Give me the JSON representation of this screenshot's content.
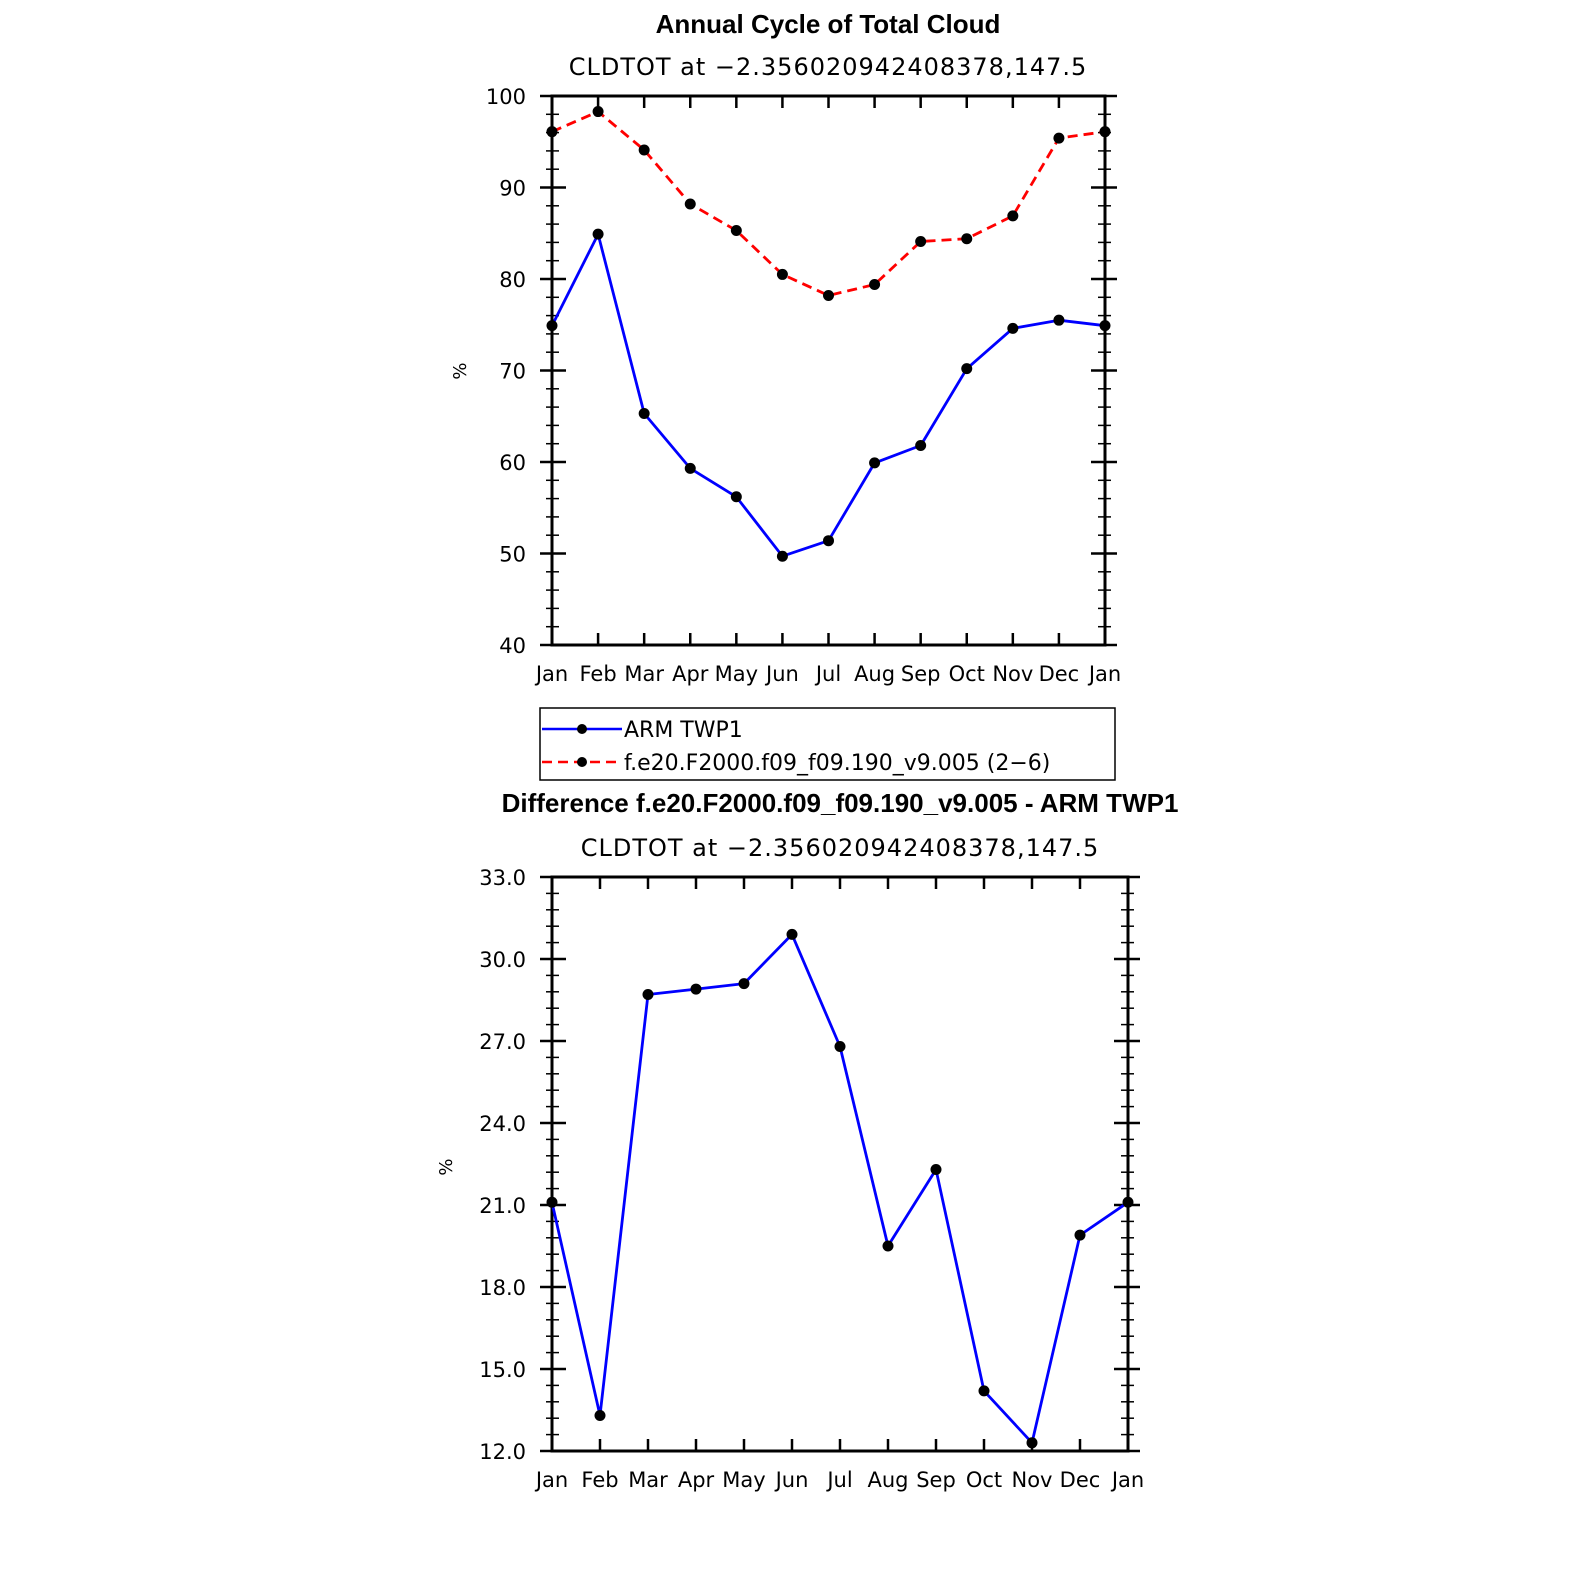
{
  "chart_data": [
    {
      "type": "line",
      "title": "Annual Cycle of Total Cloud",
      "subtitle": "CLDTOT at −2.356020942408378,147.5",
      "xlabel": "",
      "ylabel": "%",
      "categories": [
        "Jan",
        "Feb",
        "Mar",
        "Apr",
        "May",
        "Jun",
        "Jul",
        "Aug",
        "Sep",
        "Oct",
        "Nov",
        "Dec",
        "Jan"
      ],
      "yticks": [
        "40",
        "50",
        "60",
        "70",
        "80",
        "90",
        "100"
      ],
      "ylim": [
        40,
        100
      ],
      "series": [
        {
          "name": "ARM TWP1",
          "color": "#0000ff",
          "style": "solid",
          "values": [
            74.9,
            84.9,
            65.3,
            59.3,
            56.2,
            49.7,
            51.4,
            59.9,
            61.8,
            70.2,
            74.6,
            75.5,
            74.9
          ]
        },
        {
          "name": "f.e20.F2000.f09_f09.190_v9.005 (2−6)",
          "color": "#ff0000",
          "style": "dashed",
          "values": [
            96.1,
            98.3,
            94.1,
            88.2,
            85.3,
            80.5,
            78.2,
            79.4,
            84.1,
            84.4,
            86.9,
            95.4,
            96.1
          ]
        }
      ],
      "legend": "below"
    },
    {
      "type": "line",
      "title": "Difference f.e20.F2000.f09_f09.190_v9.005 - ARM TWP1",
      "subtitle": "CLDTOT at −2.356020942408378,147.5",
      "xlabel": "",
      "ylabel": "%",
      "categories": [
        "Jan",
        "Feb",
        "Mar",
        "Apr",
        "May",
        "Jun",
        "Jul",
        "Aug",
        "Sep",
        "Oct",
        "Nov",
        "Dec",
        "Jan"
      ],
      "yticks": [
        "12.0",
        "15.0",
        "18.0",
        "21.0",
        "24.0",
        "27.0",
        "30.0",
        "33.0"
      ],
      "ylim": [
        12,
        33
      ],
      "series": [
        {
          "name": "Difference",
          "color": "#0000ff",
          "style": "solid",
          "values": [
            21.1,
            13.3,
            28.7,
            28.9,
            29.1,
            30.9,
            26.8,
            19.5,
            22.3,
            14.2,
            12.3,
            19.9,
            21.1
          ]
        }
      ]
    }
  ]
}
